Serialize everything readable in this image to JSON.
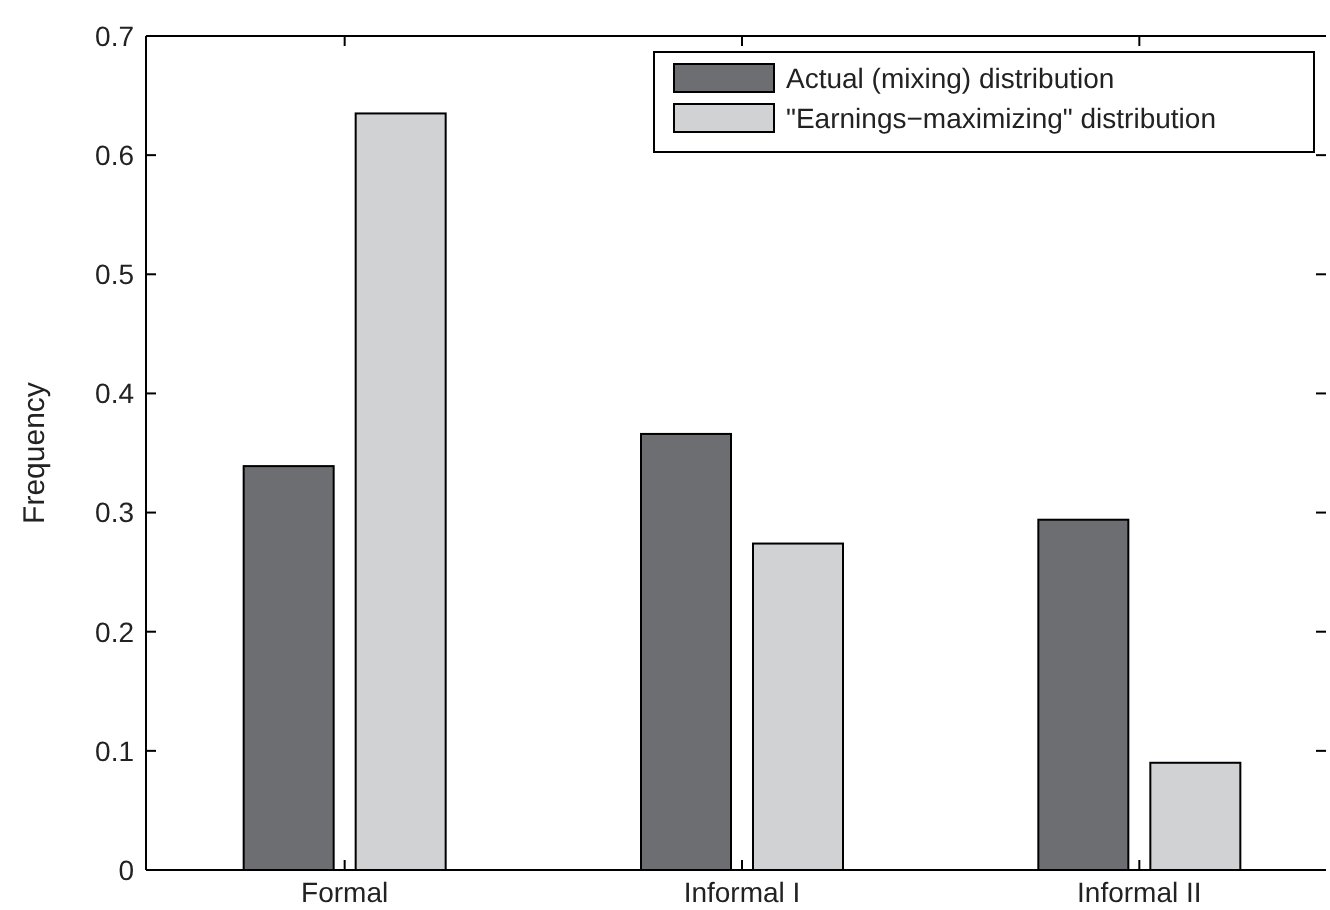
{
  "chart_data": {
    "type": "bar",
    "ylabel": "Frequency",
    "categories": [
      "Formal",
      "Informal I",
      "Informal II"
    ],
    "series": [
      {
        "name": "Actual (mixing) distribution",
        "color": "#6d6e71",
        "values": [
          0.339,
          0.366,
          0.294
        ]
      },
      {
        "name": "\"Earnings−maximizing\" distribution",
        "color": "#d1d2d4",
        "values": [
          0.635,
          0.274,
          0.09
        ]
      }
    ],
    "ylim": [
      0,
      0.7
    ],
    "yticks": [
      0,
      0.1,
      0.2,
      0.3,
      0.4,
      0.5,
      0.6,
      0.7
    ],
    "legend": "top right"
  }
}
